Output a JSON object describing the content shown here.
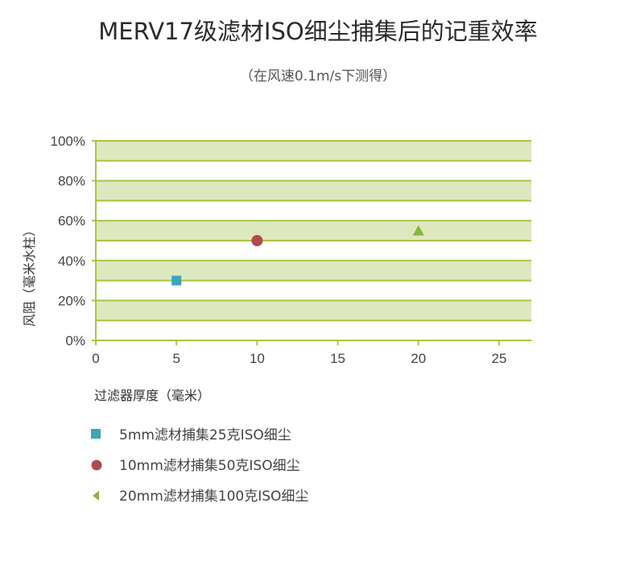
{
  "title": "MERV17级滤材ISO细尘捕集后的记重效率",
  "subtitle": "（在风速0.1m/s下测得）",
  "chart_data": {
    "type": "scatter",
    "xlabel": "过滤器厚度（毫米）",
    "ylabel": "风阻（毫米水柱）",
    "xlim": [
      0,
      27
    ],
    "ylim": [
      0,
      100
    ],
    "x_ticks": [
      "0",
      "5",
      "10",
      "15",
      "20",
      "25"
    ],
    "y_ticks": [
      "0%",
      "20%",
      "40%",
      "60%",
      "80%",
      "100%"
    ],
    "grid": true,
    "band_color": "#dde8bf",
    "grid_color": "#a9c544",
    "series": [
      {
        "name": "5mm滤材捕集25克ISO细尘",
        "marker": "square",
        "color": "#3aa6b7",
        "x": [
          5
        ],
        "y": [
          30
        ]
      },
      {
        "name": "10mm滤材捕集50克ISO细尘",
        "marker": "circle",
        "color": "#b04a4e",
        "x": [
          10
        ],
        "y": [
          50
        ]
      },
      {
        "name": "20mm滤材捕集100克ISO细尘",
        "marker": "triangle",
        "color": "#8db33a",
        "x": [
          20
        ],
        "y": [
          55
        ]
      }
    ]
  }
}
